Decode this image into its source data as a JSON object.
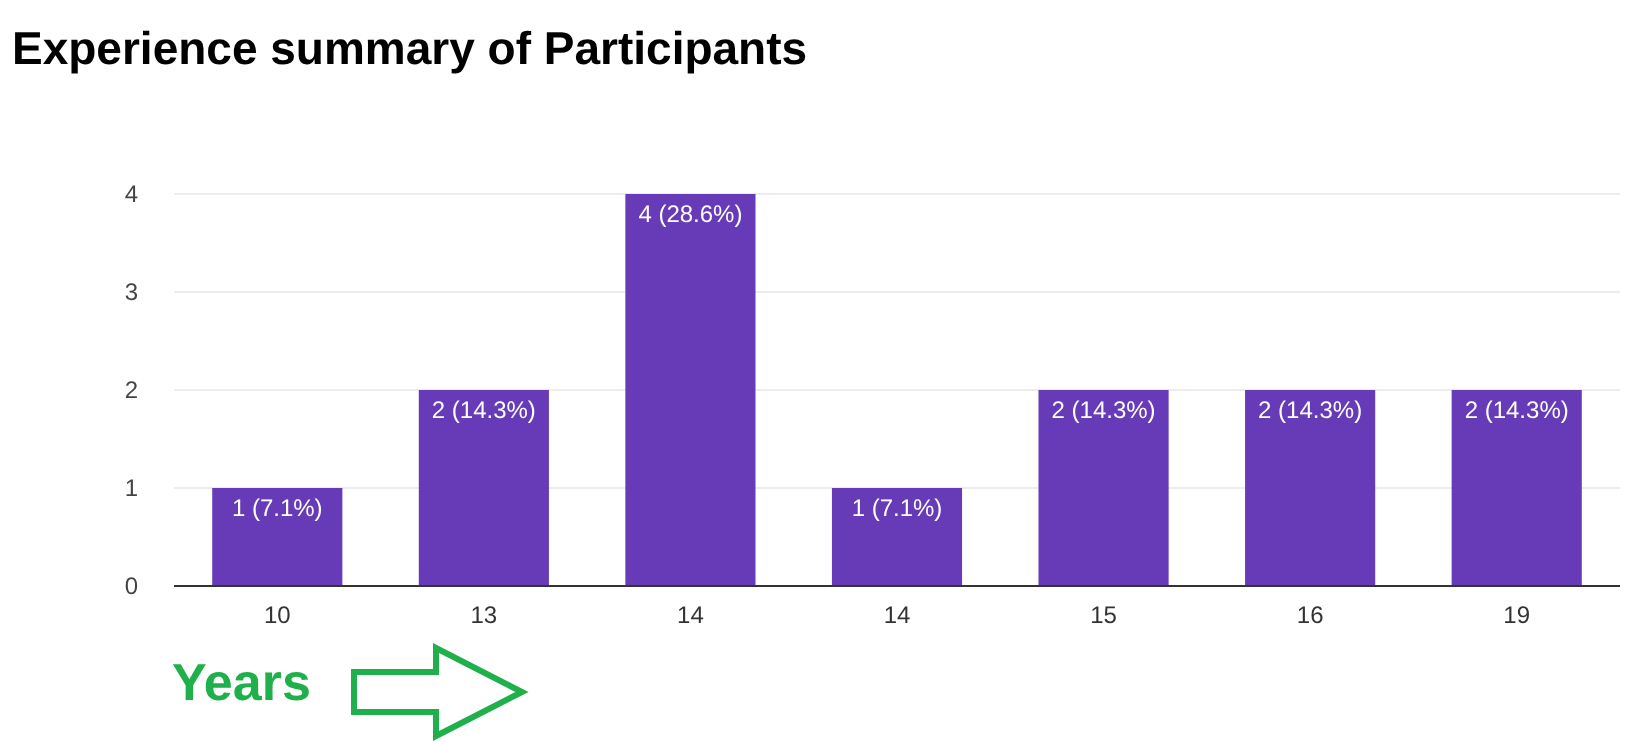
{
  "chart_data": {
    "type": "bar",
    "title": "Experience summary of Participants",
    "xlabel": "Years",
    "categories": [
      "10",
      "13",
      "14",
      "14",
      "15",
      "16",
      "19"
    ],
    "values": [
      1,
      2,
      4,
      1,
      2,
      2,
      2
    ],
    "value_labels": [
      "1 (7.1%)",
      "2 (14.3%)",
      "4 (28.6%)",
      "1 (7.1%)",
      "2 (14.3%)",
      "2 (14.3%)",
      "2 (14.3%)"
    ],
    "color": "#673ab7",
    "ylim": [
      0,
      4
    ],
    "yticks": [
      0,
      1,
      2,
      3,
      4
    ],
    "grid": "y"
  }
}
